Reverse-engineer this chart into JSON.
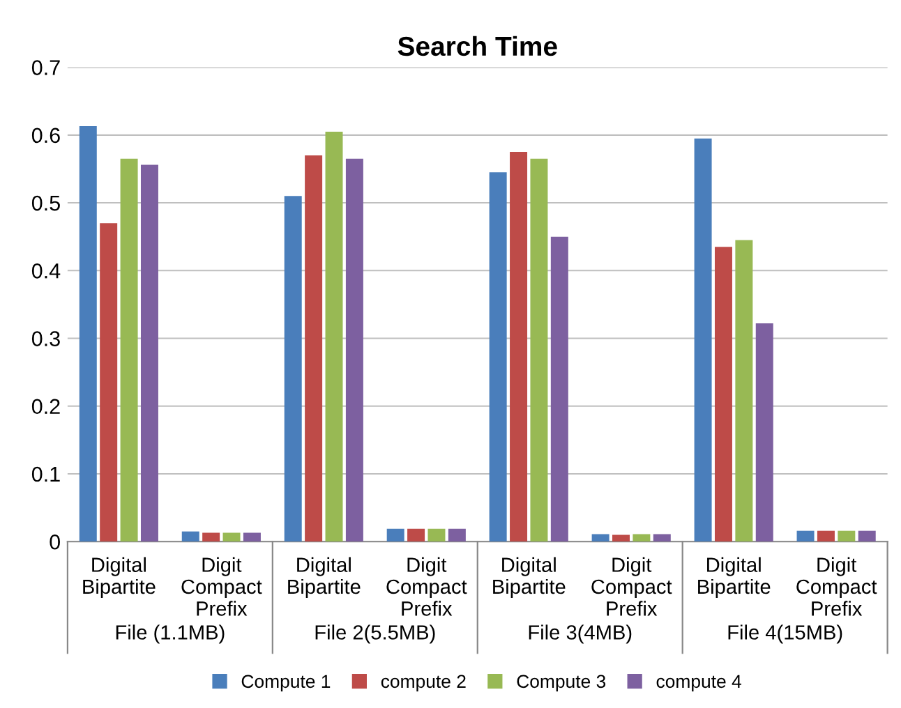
{
  "chart_data": {
    "type": "bar",
    "title": "Search Time",
    "categories": [
      "Digital\nBipartite",
      "Digit\nCompact\nPrefix",
      "Digital\nBipartite",
      "Digit\nCompact\nPrefix",
      "Digital\nBipartite",
      "Digit\nCompact\nPrefix",
      "Digital\nBipartite",
      "Digit\nCompact\nPrefix"
    ],
    "annotations": [
      "File (1.1MB)",
      "File 2(5.5MB)",
      "File 3(4MB)",
      "File 4(15MB)"
    ],
    "series": [
      {
        "name": "Compute 1",
        "color": "#4a7ebb",
        "values": [
          0.613,
          0.015,
          0.51,
          0.019,
          0.545,
          0.011,
          0.595,
          0.016
        ]
      },
      {
        "name": "compute 2",
        "color": "#be4b48",
        "values": [
          0.47,
          0.013,
          0.57,
          0.019,
          0.575,
          0.01,
          0.435,
          0.016
        ]
      },
      {
        "name": "Compute 3",
        "color": "#98b954",
        "values": [
          0.565,
          0.013,
          0.605,
          0.019,
          0.565,
          0.011,
          0.445,
          0.016
        ]
      },
      {
        "name": "compute 4",
        "color": "#7d60a0",
        "values": [
          0.556,
          0.013,
          0.565,
          0.019,
          0.45,
          0.011,
          0.322,
          0.016
        ]
      }
    ],
    "ylim": [
      0,
      0.7
    ],
    "yticks": [
      0,
      0.1,
      0.2,
      0.3,
      0.4,
      0.5,
      0.6,
      0.7
    ],
    "grid": "y",
    "legend": "bottom"
  }
}
